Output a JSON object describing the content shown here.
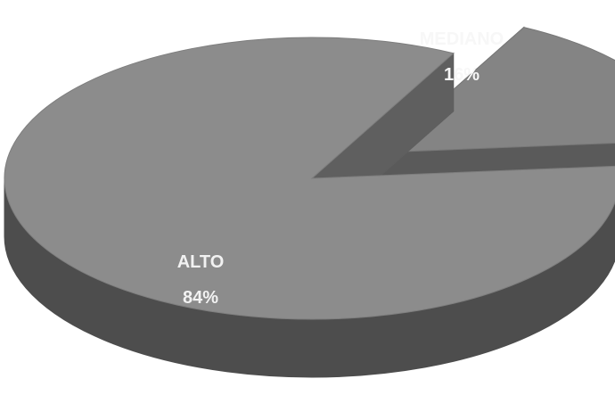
{
  "chart_data": {
    "type": "pie",
    "style": "3d-exploded",
    "slices": [
      {
        "label": "ALTO",
        "value": 84,
        "value_label": "84%",
        "color": "#8c8c8c",
        "label_color": "#f2f2f2"
      },
      {
        "label": "MEDIANO",
        "value": 16,
        "value_label": "16%",
        "color": "#848484",
        "label_color": "#f7f7f7",
        "exploded": true
      }
    ]
  }
}
